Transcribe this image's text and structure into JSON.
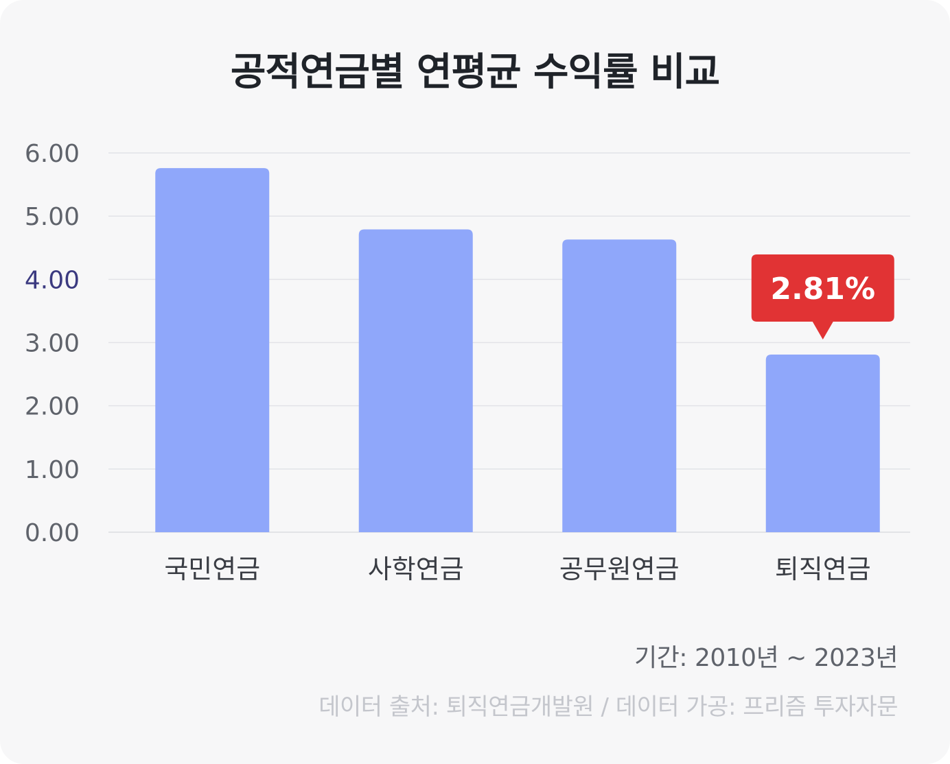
{
  "chart_data": {
    "type": "bar",
    "title": "공적연금별 연평균 수익률 비교",
    "xlabel": "",
    "ylabel": "",
    "categories": [
      "국민연금",
      "사학연금",
      "공무원연금",
      "퇴직연금"
    ],
    "values": [
      5.76,
      4.79,
      4.63,
      2.81
    ],
    "ylim": [
      0,
      6
    ],
    "y_ticks": [
      "0.00",
      "1.00",
      "2.00",
      "3.00",
      "4.00",
      "5.00",
      "6.00"
    ],
    "grid": true,
    "highlight": {
      "category": "퇴직연금",
      "label": "2.81%"
    },
    "colors": {
      "bar": "#8fa7fa",
      "highlight_badge": "#e13334",
      "grid": "#e2e3e7",
      "tick_text": "#5f636b",
      "tick_text_emphasis": "#3b3a80",
      "category_text": "#3a3d44"
    }
  },
  "footer": {
    "period": "기간: 2010년 ~ 2023년",
    "source": "데이터 출처: 퇴직연금개발원 / 데이터 가공: 프리즘 투자자문"
  }
}
